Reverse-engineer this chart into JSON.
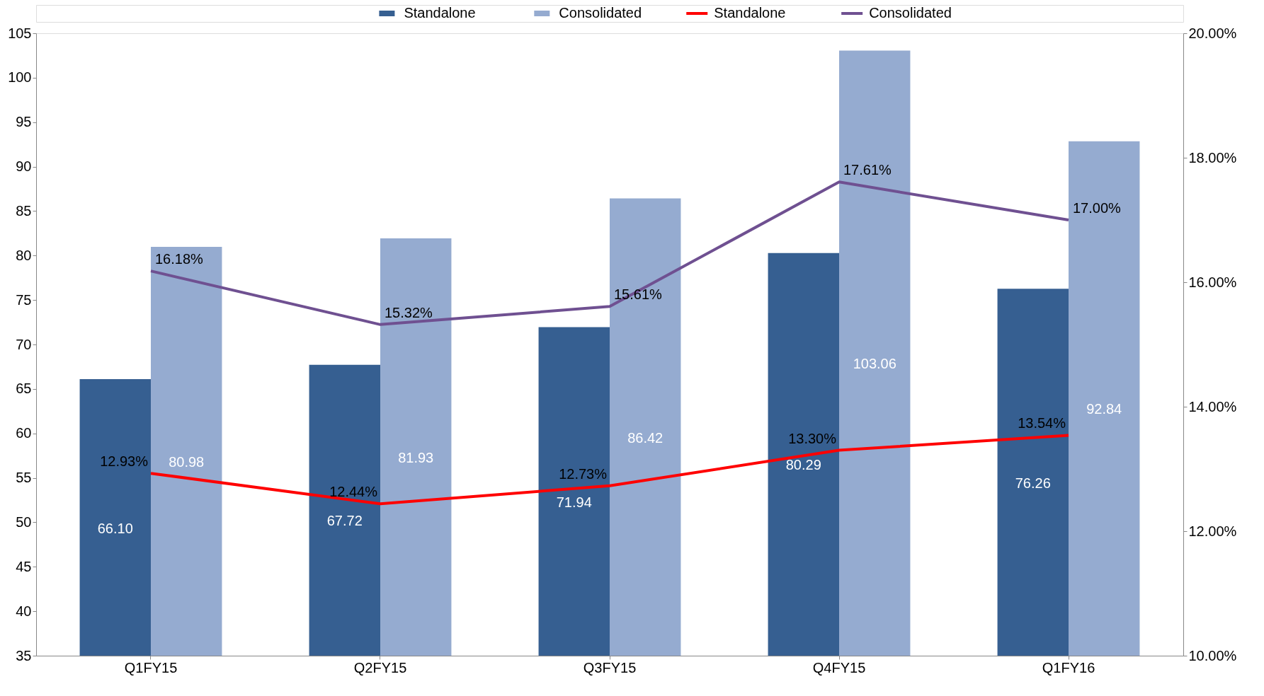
{
  "chart_data": {
    "type": "bar",
    "categories": [
      "Q1FY15",
      "Q2FY15",
      "Q3FY15",
      "Q4FY15",
      "Q1FY16"
    ],
    "series": [
      {
        "name": "Standalone",
        "color": "#365f91",
        "values": [
          66.1,
          67.72,
          71.94,
          80.29,
          76.26
        ],
        "value_labels": [
          "66.10",
          "67.72",
          "71.94",
          "80.29",
          "76.26"
        ]
      },
      {
        "name": "Consolidated",
        "color": "#95abd0",
        "values": [
          80.98,
          81.93,
          86.42,
          103.06,
          92.84
        ],
        "value_labels": [
          "80.98",
          "81.93",
          "86.42",
          "103.06",
          "92.84"
        ]
      },
      {
        "name": "Standalone",
        "type": "line",
        "axis": "y2",
        "color": "#ff0000",
        "values": [
          12.93,
          12.44,
          12.73,
          13.3,
          13.54
        ],
        "value_labels": [
          "12.93%",
          "12.44%",
          "12.73%",
          "13.30%",
          "13.54%"
        ]
      },
      {
        "name": "Consolidated",
        "type": "line",
        "axis": "y2",
        "color": "#6f5091",
        "values": [
          16.18,
          15.32,
          15.61,
          17.61,
          17.0
        ],
        "value_labels": [
          "16.18%",
          "15.32%",
          "15.61%",
          "17.61%",
          "17.00%"
        ]
      }
    ],
    "ylim": [
      35,
      105
    ],
    "yticks": [
      35,
      40,
      45,
      50,
      55,
      60,
      65,
      70,
      75,
      80,
      85,
      90,
      95,
      100,
      105
    ],
    "y2lim": [
      10,
      20
    ],
    "y2ticks": [
      {
        "value": 10,
        "label": "10.00%"
      },
      {
        "value": 12,
        "label": "12.00%"
      },
      {
        "value": 14,
        "label": "14.00%"
      },
      {
        "value": 16,
        "label": "16.00%"
      },
      {
        "value": 18,
        "label": "18.00%"
      },
      {
        "value": 20,
        "label": "20.00%"
      }
    ],
    "legend": "top",
    "grid": false
  }
}
